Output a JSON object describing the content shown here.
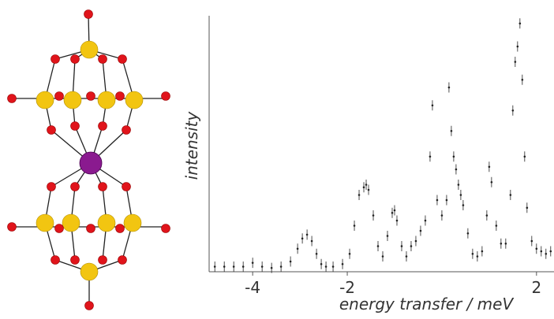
{
  "chart_data": {
    "type": "scatter",
    "xlabel": "energy transfer / meV",
    "ylabel": "intensity",
    "xlim": [
      -4.92,
      2.37
    ],
    "ylim": [
      0,
      100
    ],
    "xticks": [
      -4,
      -2,
      2
    ],
    "color": "#222222",
    "yerr": 2,
    "x": [
      -4.8,
      -4.6,
      -4.4,
      -4.2,
      -4.0,
      -3.8,
      -3.6,
      -3.4,
      -3.2,
      -3.05,
      -2.95,
      -2.85,
      -2.75,
      -2.65,
      -2.55,
      -2.45,
      -2.3,
      -2.1,
      -1.95,
      -1.85,
      -1.75,
      -1.65,
      -1.6,
      -1.55,
      -1.45,
      -1.35,
      -1.25,
      -1.15,
      -1.05,
      -1.0,
      -0.95,
      -0.85,
      -0.75,
      -0.65,
      -0.55,
      -0.45,
      -0.35,
      -0.25,
      -0.2,
      -0.1,
      0.0,
      0.1,
      0.15,
      0.2,
      0.25,
      0.3,
      0.35,
      0.4,
      0.45,
      0.55,
      0.65,
      0.75,
      0.85,
      0.95,
      1.0,
      1.05,
      1.15,
      1.25,
      1.35,
      1.45,
      1.5,
      1.55,
      1.6,
      1.65,
      1.7,
      1.75,
      1.8,
      1.9,
      2.0,
      2.1,
      2.2,
      2.3
    ],
    "values": [
      2,
      2,
      2,
      2,
      3.5,
      2,
      1.5,
      2,
      4,
      9,
      13,
      14.5,
      12,
      7,
      3,
      2,
      2,
      3,
      7,
      18,
      30,
      33,
      34,
      32,
      22,
      10,
      6,
      14,
      23,
      24,
      20,
      10,
      6,
      10,
      12,
      16,
      20,
      45,
      65,
      28,
      22,
      28,
      72,
      55,
      45,
      40,
      34,
      30,
      26,
      15,
      7,
      6,
      8,
      22,
      41,
      35,
      18,
      11,
      11,
      30,
      63,
      82,
      88,
      97,
      75,
      45,
      25,
      12,
      9,
      8,
      7,
      8
    ]
  }
}
